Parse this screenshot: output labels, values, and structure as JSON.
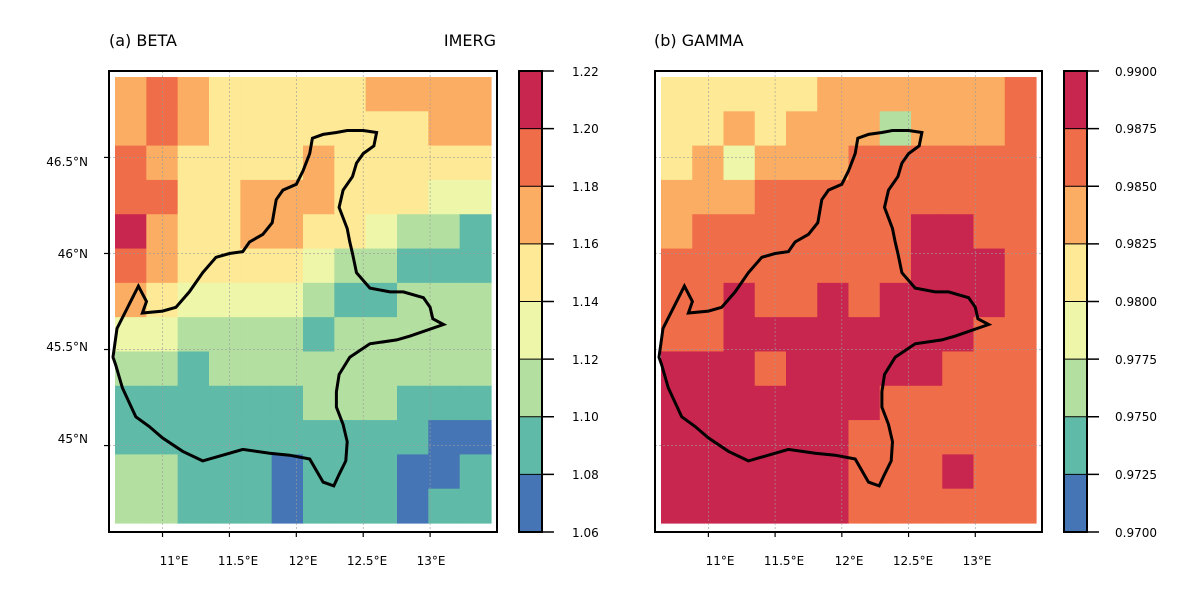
{
  "chart_data": [
    {
      "type": "heatmap",
      "title": "(a) BETA",
      "subtitle": "IMERG",
      "x_ticks": [
        "11°E",
        "11.5°E",
        "12°E",
        "12.5°E",
        "13°E"
      ],
      "y_ticks": [
        "46.5°N",
        "46°N",
        "45.5°N",
        "45°N"
      ],
      "xlim": [
        10.6,
        13.5
      ],
      "ylim": [
        44.55,
        46.95
      ],
      "colorbar": {
        "levels": [
          1.06,
          1.08,
          1.1,
          1.12,
          1.14,
          1.16,
          1.18,
          1.2,
          1.22
        ],
        "tick_labels": [
          "1.06",
          "1.08",
          "1.10",
          "1.12",
          "1.14",
          "1.16",
          "1.18",
          "1.20",
          "1.22"
        ]
      },
      "grid": [
        [
          1.17,
          1.19,
          1.17,
          1.15,
          1.15,
          1.15,
          1.15,
          1.15,
          1.16,
          1.17,
          1.17,
          1.17
        ],
        [
          1.17,
          1.18,
          1.16,
          1.15,
          1.15,
          1.15,
          1.14,
          1.14,
          1.15,
          1.15,
          1.16,
          1.16
        ],
        [
          1.18,
          1.17,
          1.15,
          1.15,
          1.14,
          1.15,
          1.16,
          1.15,
          1.15,
          1.15,
          1.15,
          1.15
        ],
        [
          1.19,
          1.18,
          1.15,
          1.15,
          1.16,
          1.17,
          1.16,
          1.15,
          1.14,
          1.14,
          1.13,
          1.13
        ],
        [
          1.2,
          1.17,
          1.15,
          1.15,
          1.17,
          1.16,
          1.15,
          1.14,
          1.13,
          1.11,
          1.1,
          1.09
        ],
        [
          1.18,
          1.16,
          1.14,
          1.15,
          1.14,
          1.14,
          1.13,
          1.11,
          1.1,
          1.09,
          1.09,
          1.09
        ],
        [
          1.16,
          1.14,
          1.13,
          1.13,
          1.13,
          1.12,
          1.1,
          1.09,
          1.09,
          1.1,
          1.1,
          1.1
        ],
        [
          1.13,
          1.12,
          1.11,
          1.11,
          1.11,
          1.1,
          1.09,
          1.1,
          1.1,
          1.11,
          1.11,
          1.11
        ],
        [
          1.1,
          1.1,
          1.09,
          1.1,
          1.1,
          1.1,
          1.1,
          1.11,
          1.11,
          1.11,
          1.1,
          1.1
        ],
        [
          1.08,
          1.08,
          1.08,
          1.08,
          1.09,
          1.09,
          1.1,
          1.1,
          1.1,
          1.09,
          1.09,
          1.08
        ],
        [
          1.09,
          1.09,
          1.09,
          1.09,
          1.08,
          1.08,
          1.09,
          1.09,
          1.09,
          1.08,
          1.07,
          1.07
        ],
        [
          1.1,
          1.1,
          1.09,
          1.09,
          1.08,
          1.07,
          1.08,
          1.09,
          1.08,
          1.07,
          1.07,
          1.08
        ],
        [
          1.11,
          1.1,
          1.09,
          1.09,
          1.08,
          1.07,
          1.09,
          1.09,
          1.08,
          1.07,
          1.08,
          1.09
        ]
      ]
    },
    {
      "type": "heatmap",
      "title": "(b) GAMMA",
      "x_ticks": [
        "11°E",
        "11.5°E",
        "12°E",
        "12.5°E",
        "13°E"
      ],
      "y_ticks": [],
      "xlim": [
        10.6,
        13.5
      ],
      "ylim": [
        44.55,
        46.95
      ],
      "colorbar": {
        "levels": [
          0.97,
          0.9725,
          0.975,
          0.9775,
          0.98,
          0.9825,
          0.985,
          0.9875,
          0.99
        ],
        "tick_labels": [
          "0.9700",
          "0.9725",
          "0.9750",
          "0.9775",
          "0.9800",
          "0.9825",
          "0.9850",
          "0.9875",
          "0.9900"
        ]
      },
      "grid": [
        [
          0.981,
          0.981,
          0.981,
          0.981,
          0.981,
          0.983,
          0.983,
          0.983,
          0.983,
          0.983,
          0.983,
          0.985
        ],
        [
          0.981,
          0.981,
          0.983,
          0.981,
          0.983,
          0.983,
          0.983,
          0.976,
          0.983,
          0.983,
          0.983,
          0.985
        ],
        [
          0.981,
          0.983,
          0.979,
          0.983,
          0.983,
          0.983,
          0.985,
          0.985,
          0.985,
          0.985,
          0.985,
          0.985
        ],
        [
          0.983,
          0.983,
          0.983,
          0.985,
          0.985,
          0.985,
          0.985,
          0.985,
          0.985,
          0.985,
          0.985,
          0.985
        ],
        [
          0.983,
          0.985,
          0.985,
          0.985,
          0.985,
          0.985,
          0.985,
          0.985,
          0.988,
          0.988,
          0.985,
          0.985
        ],
        [
          0.985,
          0.985,
          0.985,
          0.985,
          0.985,
          0.985,
          0.985,
          0.985,
          0.988,
          0.988,
          0.988,
          0.985
        ],
        [
          0.985,
          0.985,
          0.988,
          0.985,
          0.985,
          0.988,
          0.985,
          0.988,
          0.988,
          0.988,
          0.988,
          0.985
        ],
        [
          0.985,
          0.985,
          0.988,
          0.988,
          0.988,
          0.988,
          0.988,
          0.988,
          0.988,
          0.988,
          0.985,
          0.985
        ],
        [
          0.988,
          0.988,
          0.988,
          0.985,
          0.988,
          0.988,
          0.988,
          0.988,
          0.988,
          0.985,
          0.985,
          0.985
        ],
        [
          0.988,
          0.988,
          0.988,
          0.988,
          0.988,
          0.988,
          0.988,
          0.985,
          0.985,
          0.985,
          0.985,
          0.985
        ],
        [
          0.988,
          0.988,
          0.988,
          0.988,
          0.988,
          0.988,
          0.985,
          0.985,
          0.985,
          0.985,
          0.985,
          0.985
        ],
        [
          0.988,
          0.988,
          0.988,
          0.988,
          0.988,
          0.988,
          0.985,
          0.985,
          0.985,
          0.988,
          0.985,
          0.985
        ],
        [
          0.988,
          0.988,
          0.988,
          0.988,
          0.988,
          0.988,
          0.985,
          0.985,
          0.985,
          0.985,
          0.985,
          0.985
        ]
      ]
    }
  ],
  "palette": [
    "#4575b4",
    "#5fbaa8",
    "#b3dfa0",
    "#eef7a9",
    "#fde996",
    "#fbae63",
    "#f06d4a",
    "#c9264f"
  ],
  "outline_color": "#000000"
}
